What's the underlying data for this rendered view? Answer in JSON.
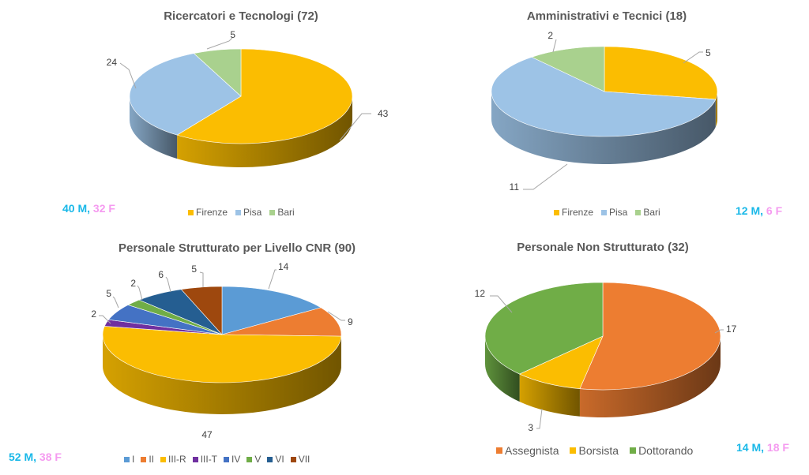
{
  "colors": {
    "male": "#19b8e8",
    "female": "#f59bf0",
    "label_text": "#404040",
    "leader_line": "#a6a6a6"
  },
  "chart_data": [
    {
      "id": "c1",
      "type": "pie",
      "subtype": "3d-pie",
      "title": "Ricercatori e Tecnologi (72)",
      "categories": [
        "Firenze",
        "Pisa",
        "Bari"
      ],
      "values": [
        43,
        24,
        5
      ],
      "colors": [
        "#fbbd01",
        "#9dc3e6",
        "#a9d18e"
      ],
      "legend": "bottom",
      "gender": {
        "male": "40 M,",
        "female": "32 F"
      }
    },
    {
      "id": "c2",
      "type": "pie",
      "subtype": "3d-pie",
      "title": "Amministrativi e Tecnici (18)",
      "categories": [
        "Firenze",
        "Pisa",
        "Bari"
      ],
      "values": [
        5,
        11,
        2
      ],
      "colors": [
        "#fbbd01",
        "#9dc3e6",
        "#a9d18e"
      ],
      "legend": "bottom",
      "gender": {
        "male": "12 M,",
        "female": "6 F"
      }
    },
    {
      "id": "c3",
      "type": "pie",
      "subtype": "3d-pie",
      "title": "Personale Strutturato per Livello CNR (90)",
      "categories": [
        "I",
        "II",
        "III-R",
        "III-T",
        "IV",
        "V",
        "VI",
        "VII"
      ],
      "values": [
        14,
        9,
        47,
        2,
        5,
        2,
        6,
        5
      ],
      "colors": [
        "#5b9bd5",
        "#ed7d31",
        "#fbbd01",
        "#7030a0",
        "#4472c4",
        "#70ad47",
        "#255e91",
        "#9e480e"
      ],
      "legend": "bottom",
      "gender": {
        "male": "52 M,",
        "female": "38 F"
      }
    },
    {
      "id": "c4",
      "type": "pie",
      "subtype": "3d-pie",
      "title": "Personale Non Strutturato (32)",
      "categories": [
        "Assegnista",
        "Borsista",
        "Dottorando"
      ],
      "values": [
        17,
        3,
        12
      ],
      "colors": [
        "#ed7d31",
        "#fbbd01",
        "#70ad47"
      ],
      "legend": "bottom",
      "gender": {
        "male": "14 M,",
        "female": "18 F"
      }
    }
  ]
}
